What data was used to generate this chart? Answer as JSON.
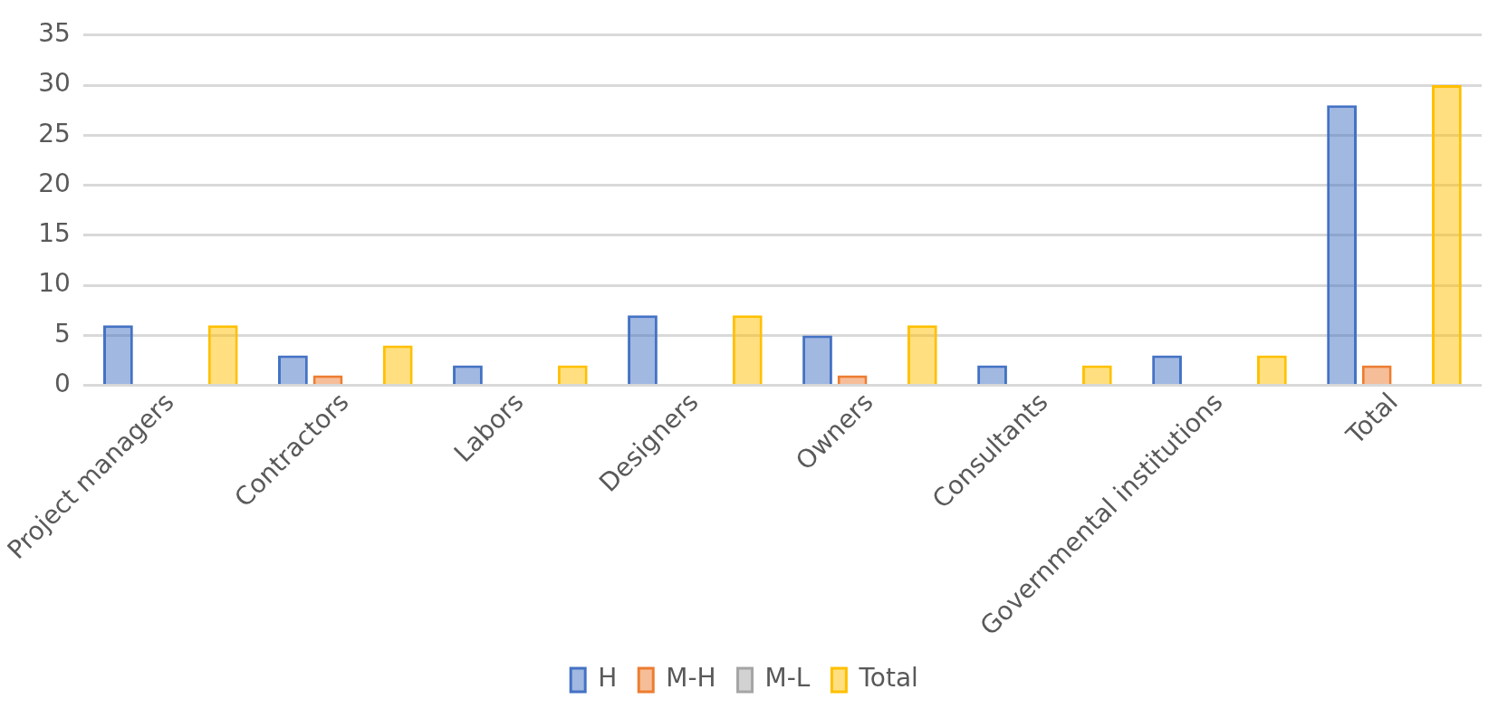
{
  "chart_data": {
    "type": "bar",
    "categories": [
      "Project managers",
      "Contractors",
      "Labors",
      "Designers",
      "Owners",
      "Consultants",
      "Governmental institutions",
      "Total"
    ],
    "series": [
      {
        "name": "H",
        "color": "#4472c4",
        "values": [
          6,
          3,
          2,
          7,
          5,
          2,
          3,
          28
        ]
      },
      {
        "name": "M-H",
        "color": "#ed7d31",
        "values": [
          0,
          1,
          0,
          0,
          1,
          0,
          0,
          2
        ]
      },
      {
        "name": "M-L",
        "color": "#a5a5a5",
        "values": [
          0,
          0,
          0,
          0,
          0,
          0,
          0,
          0
        ]
      },
      {
        "name": "Total",
        "color": "#ffc000",
        "values": [
          6,
          4,
          2,
          7,
          6,
          2,
          3,
          30
        ]
      }
    ],
    "ylim": [
      0,
      35
    ],
    "yticks": [
      0,
      5,
      10,
      15,
      20,
      25,
      30,
      35
    ],
    "grid": "y",
    "legend": "bottom"
  }
}
